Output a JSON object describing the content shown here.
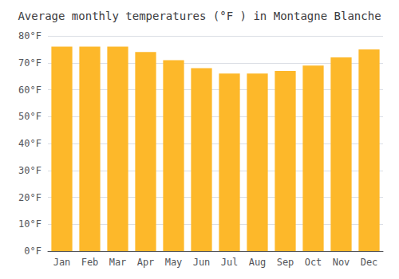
{
  "chart_data": {
    "type": "bar",
    "title": "Average monthly temperatures (°F ) in Montagne Blanche",
    "categories": [
      "Jan",
      "Feb",
      "Mar",
      "Apr",
      "May",
      "Jun",
      "Jul",
      "Aug",
      "Sep",
      "Oct",
      "Nov",
      "Dec"
    ],
    "values": [
      76,
      76,
      76,
      74,
      71,
      68,
      66,
      66,
      67,
      69,
      72,
      75
    ],
    "color": "#FDB82A",
    "ylim": [
      0,
      80
    ],
    "yticks": [
      {
        "value": 0,
        "label": "0°F"
      },
      {
        "value": 10,
        "label": "10°F"
      },
      {
        "value": 20,
        "label": "20°F"
      },
      {
        "value": 30,
        "label": "30°F"
      },
      {
        "value": 40,
        "label": "40°F"
      },
      {
        "value": 50,
        "label": "50°F"
      },
      {
        "value": 60,
        "label": "60°F"
      },
      {
        "value": 70,
        "label": "70°F"
      },
      {
        "value": 80,
        "label": "80°F"
      }
    ],
    "grid": true
  }
}
